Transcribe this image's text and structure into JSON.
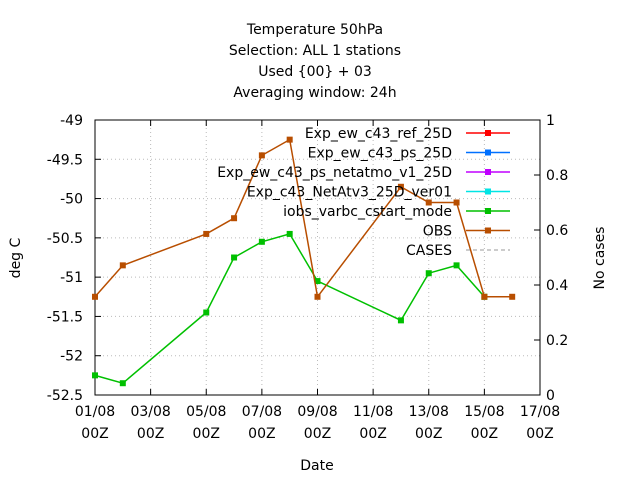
{
  "chart_data": {
    "type": "line",
    "title_lines": [
      "Temperature 50hPa",
      "Selection: ALL      1 stations",
      "Used {00} + 03",
      "Averaging window: 24h"
    ],
    "xlabel": "Date",
    "ylabel": "deg C",
    "y2label": "No cases",
    "ylim": [
      -52.5,
      -49
    ],
    "y2lim": [
      0,
      1
    ],
    "xlim": [
      "2019-08-01",
      "2019-08-17"
    ],
    "x_ticks": [
      "01/08\n00Z",
      "03/08\n00Z",
      "05/08\n00Z",
      "07/08\n00Z",
      "09/08\n00Z",
      "11/08\n00Z",
      "13/08\n00Z",
      "15/08\n00Z",
      "17/08\n00Z"
    ],
    "y_ticks": [
      "-49",
      "-49.5",
      "-50",
      "-50.5",
      "-51",
      "-51.5",
      "-52",
      "-52.5"
    ],
    "y2_ticks": [
      "1",
      "0.8",
      "0.6",
      "0.4",
      "0.2",
      "0"
    ],
    "legend_position": "top-right",
    "grid": true,
    "series": [
      {
        "name": "Exp_ew_c43_ref_25D",
        "color": "#ff0000",
        "x": [],
        "y": []
      },
      {
        "name": "Exp_ew_c43_ps_25D",
        "color": "#0070ff",
        "x": [],
        "y": []
      },
      {
        "name": "Exp_ew_c43_ps_netatmo_v1_25D",
        "color": "#c000ff",
        "x": [],
        "y": []
      },
      {
        "name": "Exp_c43_NetAtv3_25D_ver01",
        "color": "#00e5e5",
        "x": [],
        "y": []
      },
      {
        "name": "iobs_varbc_cstart_mode",
        "color": "#00c000",
        "x": [
          "2019-08-01",
          "2019-08-02",
          "2019-08-05",
          "2019-08-06",
          "2019-08-07",
          "2019-08-08",
          "2019-08-09",
          "2019-08-12",
          "2019-08-13",
          "2019-08-14",
          "2019-08-15"
        ],
        "y": [
          -52.25,
          -52.35,
          -51.45,
          -50.75,
          -50.55,
          -50.45,
          -51.05,
          -51.55,
          -50.95,
          -50.85,
          -51.25
        ]
      },
      {
        "name": "OBS",
        "color": "#b84e00",
        "x": [
          "2019-08-01",
          "2019-08-02",
          "2019-08-05",
          "2019-08-06",
          "2019-08-07",
          "2019-08-08",
          "2019-08-09",
          "2019-08-12",
          "2019-08-13",
          "2019-08-14",
          "2019-08-15",
          "2019-08-16"
        ],
        "y": [
          -51.25,
          -50.85,
          -50.45,
          -50.25,
          -49.45,
          -49.25,
          -51.25,
          -49.85,
          -50.05,
          -50.05,
          -51.25,
          -51.25
        ]
      },
      {
        "name": "CASES",
        "color": "#999999",
        "x": [],
        "y": []
      }
    ]
  }
}
